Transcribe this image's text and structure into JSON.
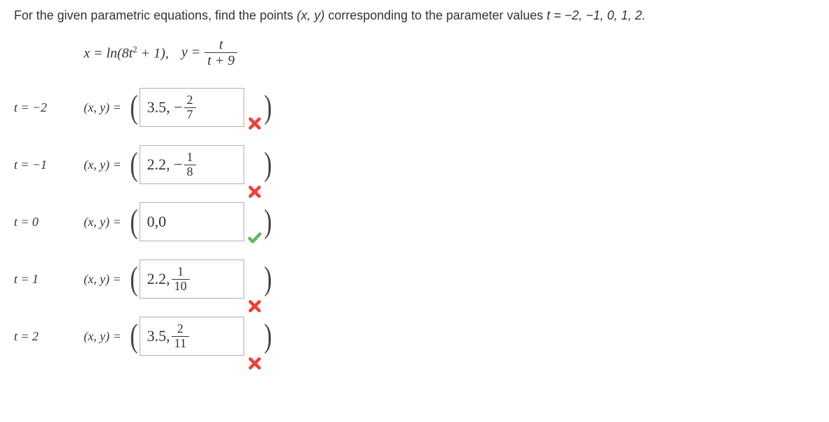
{
  "question_prefix": "For the given parametric equations, find the points ",
  "question_xy": "(x, y)",
  "question_mid": " corresponding to the parameter values ",
  "question_tvals": "t = −2, −1, 0, 1, 2.",
  "eq_x": "x = ln(8t",
  "eq_x_sup": "2",
  "eq_x_suffix": " + 1),",
  "eq_y_label": "y = ",
  "eq_y_num": "t",
  "eq_y_den": "t + 9",
  "xy_label": "(x, y)  =",
  "rows": [
    {
      "t_label": "t = −2",
      "answer_plain": "3.5, − ",
      "answer_num": "2",
      "answer_den": "7",
      "status": "wrong",
      "mark_offset": false
    },
    {
      "t_label": "t = −1",
      "answer_plain": "2.2, − ",
      "answer_num": "1",
      "answer_den": "8",
      "status": "wrong",
      "mark_offset": true
    },
    {
      "t_label": "t = 0",
      "answer_plain": "0,0",
      "answer_num": "",
      "answer_den": "",
      "status": "correct",
      "mark_offset": false
    },
    {
      "t_label": "t = 1",
      "answer_plain": "2.2, ",
      "answer_num": "1",
      "answer_den": "10",
      "status": "wrong",
      "mark_offset": true
    },
    {
      "t_label": "t = 2",
      "answer_plain": "3.5, ",
      "answer_num": "2",
      "answer_den": "11",
      "status": "wrong",
      "mark_offset": true
    }
  ],
  "colors": {
    "wrong": "#ef3e36",
    "correct": "#5fb95f"
  }
}
